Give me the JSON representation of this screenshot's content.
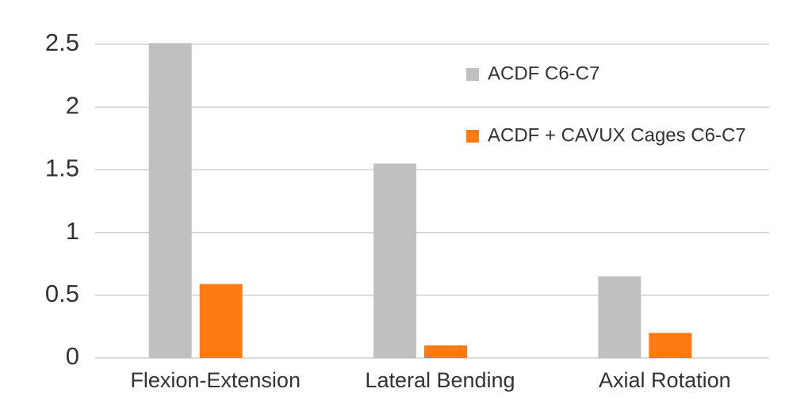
{
  "chart_data": {
    "type": "bar",
    "categories": [
      "Flexion-Extension",
      "Lateral Bending",
      "Axial Rotation"
    ],
    "series": [
      {
        "name": "ACDF C6-C7",
        "color": "#c0c0c0",
        "values": [
          2.51,
          1.55,
          0.65
        ]
      },
      {
        "name": "ACDF + CAVUX Cages C6-C7",
        "color": "#ff7a12",
        "values": [
          0.59,
          0.1,
          0.2
        ]
      }
    ],
    "ylim": [
      0,
      2.5
    ],
    "yticks": [
      0,
      0.5,
      1,
      1.5,
      2,
      2.5
    ],
    "grid": true,
    "legend": "upper right"
  }
}
